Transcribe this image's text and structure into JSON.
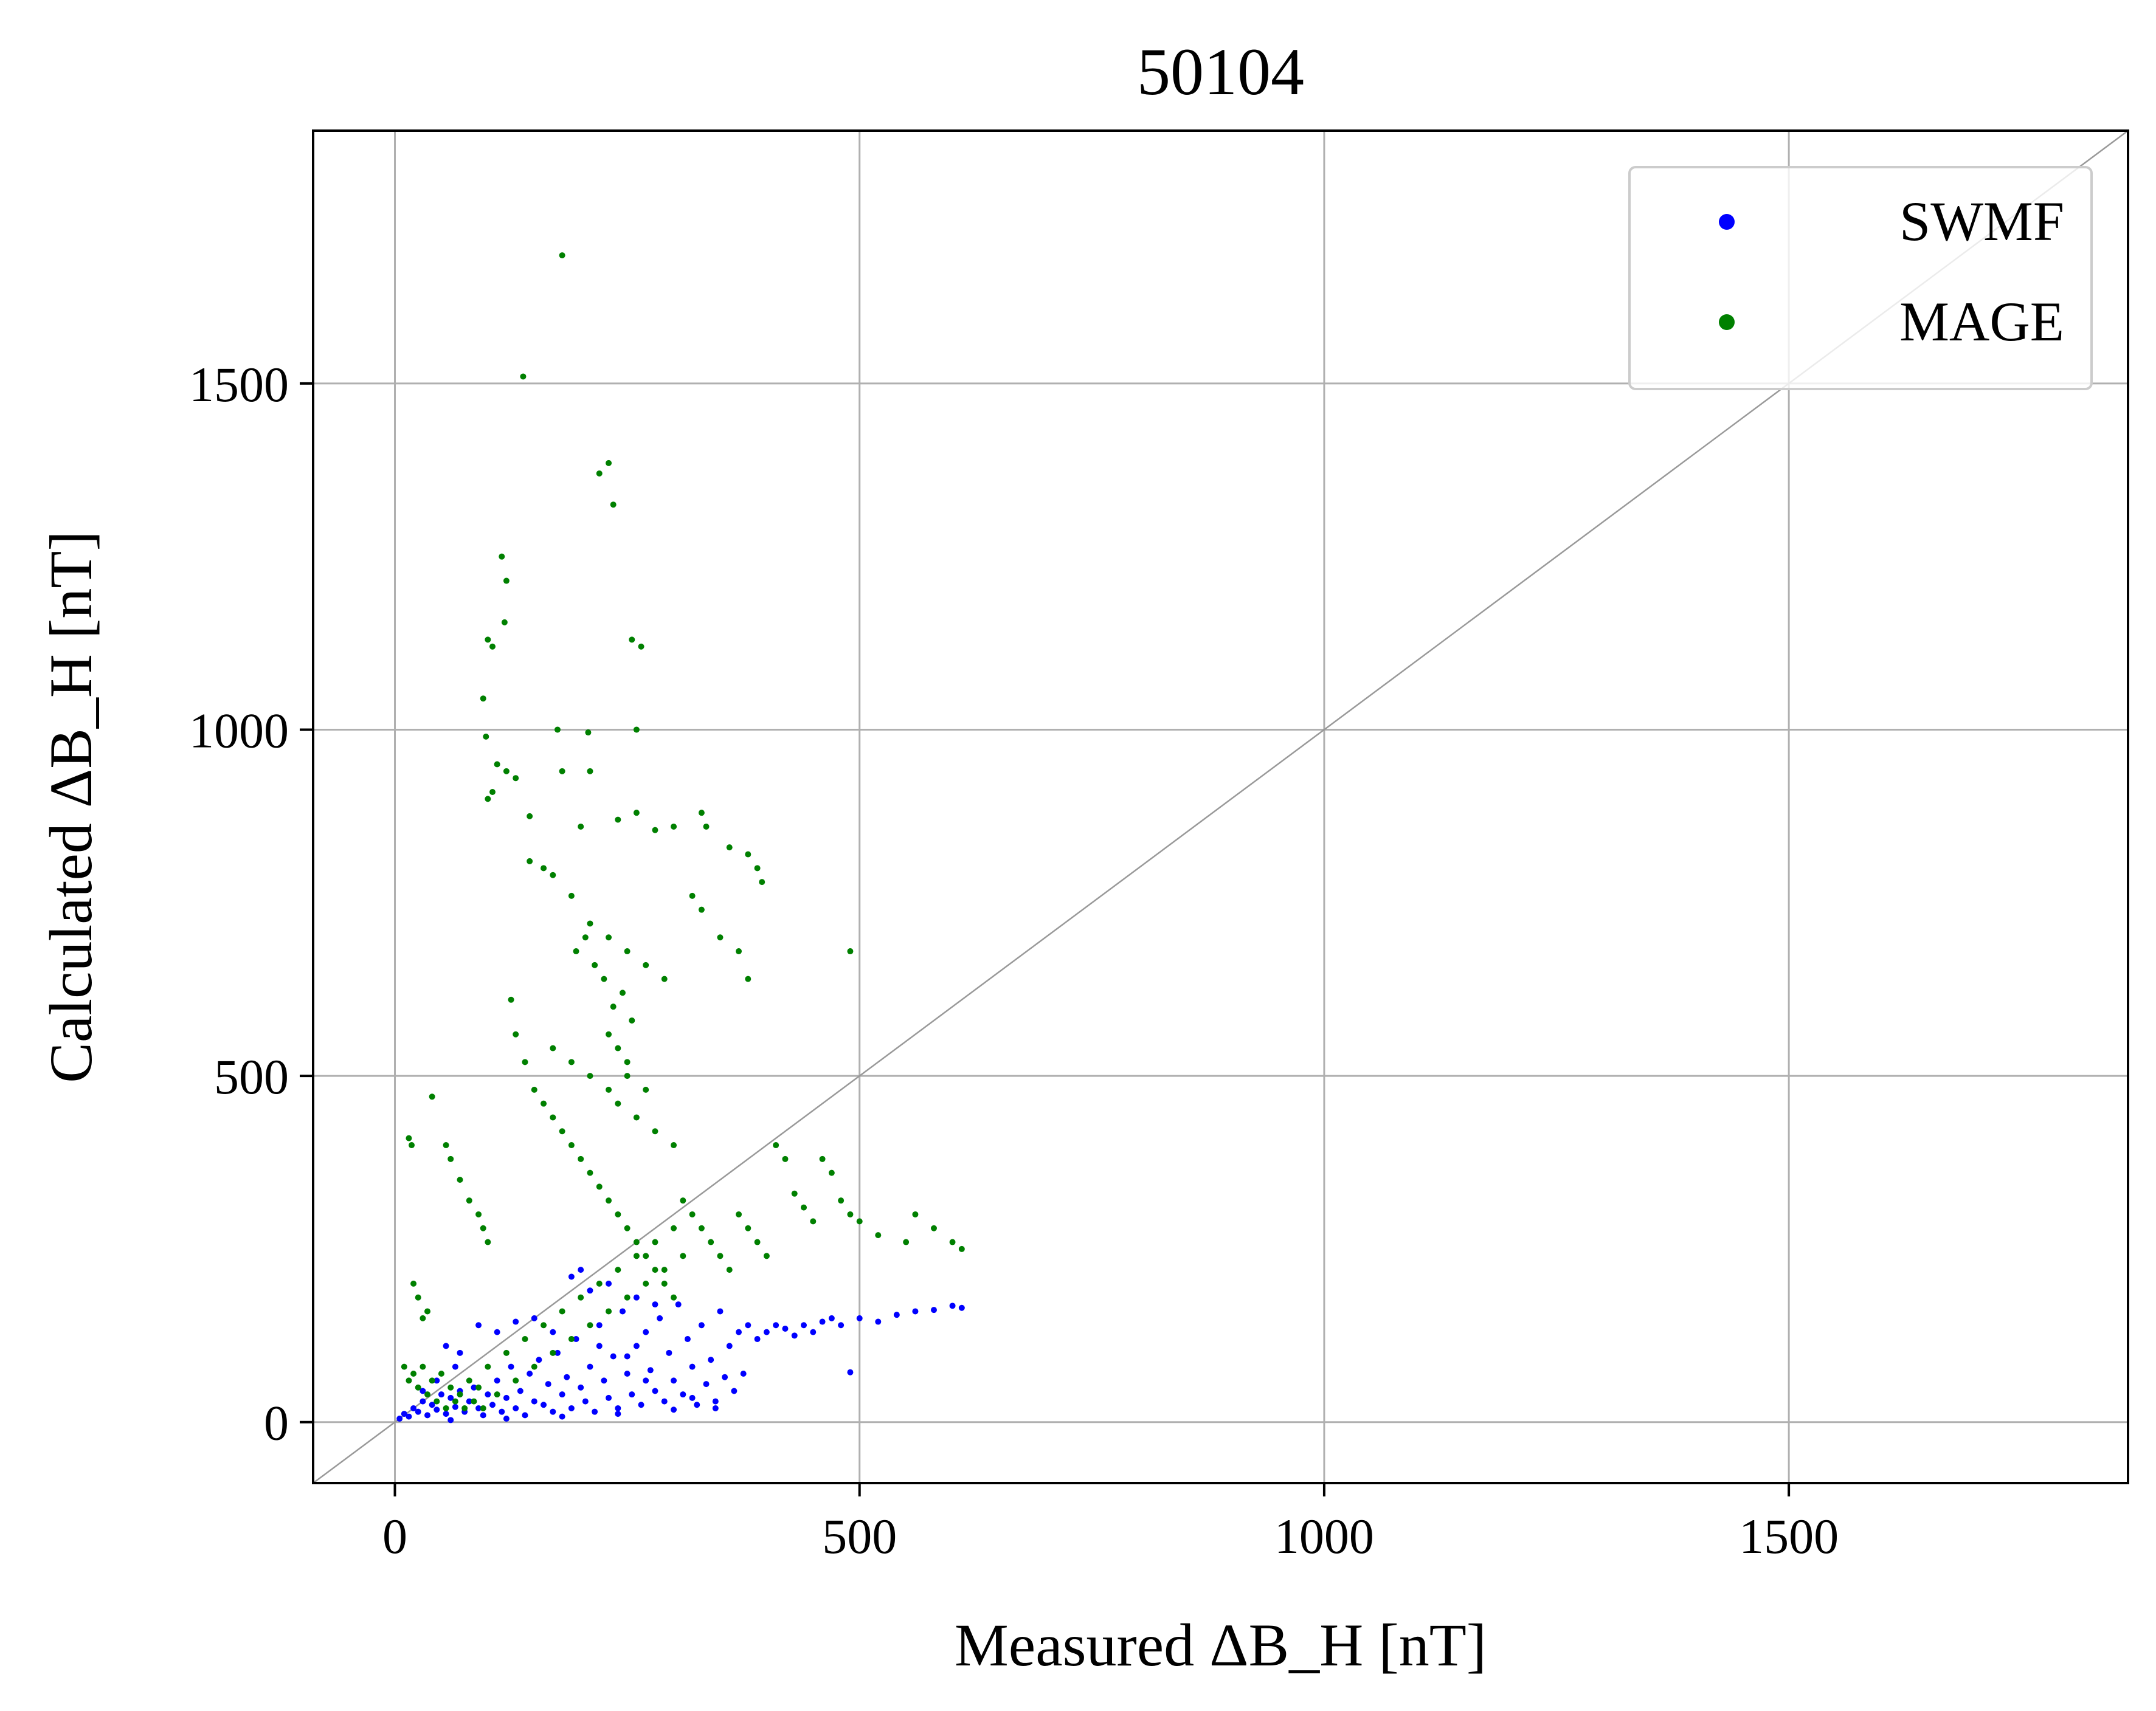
{
  "chart_data": {
    "type": "scatter",
    "title": "50104",
    "xlabel": "Measured ΔB_H [nT]",
    "ylabel": "Calculated ΔB_H [nT]",
    "xlim": [
      -88,
      1865
    ],
    "ylim": [
      -88,
      1865
    ],
    "xticks": [
      "0",
      "500",
      "1000",
      "1500"
    ],
    "yticks": [
      "0",
      "500",
      "1000",
      "1500"
    ],
    "xtick_values": [
      0,
      500,
      1000,
      1500
    ],
    "ytick_values": [
      0,
      500,
      1000,
      1500
    ],
    "grid": true,
    "legend_position": "top-right",
    "reference_line": "y = x",
    "colors": {
      "SWMF": "#0000ff",
      "MAGE": "#008000",
      "grid": "#b0b0b0",
      "diagonal": "#999999"
    },
    "series": [
      {
        "name": "SWMF",
        "points": [
          [
            5,
            5
          ],
          [
            10,
            12
          ],
          [
            15,
            8
          ],
          [
            20,
            20
          ],
          [
            25,
            15
          ],
          [
            30,
            30
          ],
          [
            35,
            10
          ],
          [
            40,
            25
          ],
          [
            45,
            18
          ],
          [
            50,
            40
          ],
          [
            55,
            12
          ],
          [
            60,
            35
          ],
          [
            65,
            22
          ],
          [
            70,
            45
          ],
          [
            75,
            15
          ],
          [
            80,
            30
          ],
          [
            85,
            50
          ],
          [
            90,
            20
          ],
          [
            95,
            10
          ],
          [
            100,
            40
          ],
          [
            105,
            25
          ],
          [
            110,
            60
          ],
          [
            115,
            15
          ],
          [
            120,
            35
          ],
          [
            125,
            80
          ],
          [
            130,
            20
          ],
          [
            135,
            45
          ],
          [
            140,
            10
          ],
          [
            145,
            70
          ],
          [
            150,
            30
          ],
          [
            155,
            90
          ],
          [
            160,
            25
          ],
          [
            165,
            55
          ],
          [
            170,
            15
          ],
          [
            175,
            100
          ],
          [
            180,
            40
          ],
          [
            185,
            65
          ],
          [
            190,
            20
          ],
          [
            195,
            120
          ],
          [
            200,
            50
          ],
          [
            205,
            30
          ],
          [
            210,
            80
          ],
          [
            215,
            15
          ],
          [
            220,
            140
          ],
          [
            225,
            60
          ],
          [
            230,
            35
          ],
          [
            235,
            95
          ],
          [
            240,
            20
          ],
          [
            245,
            160
          ],
          [
            250,
            70
          ],
          [
            255,
            40
          ],
          [
            260,
            110
          ],
          [
            265,
            25
          ],
          [
            270,
            130
          ],
          [
            275,
            75
          ],
          [
            280,
            45
          ],
          [
            285,
            150
          ],
          [
            290,
            30
          ],
          [
            295,
            100
          ],
          [
            300,
            60
          ],
          [
            305,
            170
          ],
          [
            310,
            40
          ],
          [
            315,
            120
          ],
          [
            320,
            80
          ],
          [
            325,
            25
          ],
          [
            330,
            140
          ],
          [
            335,
            55
          ],
          [
            340,
            90
          ],
          [
            345,
            30
          ],
          [
            350,
            160
          ],
          [
            355,
            65
          ],
          [
            360,
            110
          ],
          [
            365,
            45
          ],
          [
            370,
            130
          ],
          [
            375,
            70
          ],
          [
            380,
            140
          ],
          [
            390,
            120
          ],
          [
            400,
            130
          ],
          [
            410,
            140
          ],
          [
            420,
            135
          ],
          [
            430,
            125
          ],
          [
            440,
            140
          ],
          [
            450,
            130
          ],
          [
            460,
            145
          ],
          [
            470,
            150
          ],
          [
            480,
            140
          ],
          [
            490,
            72
          ],
          [
            500,
            150
          ],
          [
            520,
            145
          ],
          [
            540,
            155
          ],
          [
            560,
            160
          ],
          [
            580,
            162
          ],
          [
            600,
            168
          ],
          [
            610,
            165
          ],
          [
            120,
            5
          ],
          [
            180,
            8
          ],
          [
            240,
            12
          ],
          [
            300,
            18
          ],
          [
            60,
            3
          ],
          [
            200,
            220
          ],
          [
            230,
            200
          ],
          [
            260,
            180
          ],
          [
            280,
            170
          ],
          [
            150,
            150
          ],
          [
            170,
            130
          ],
          [
            220,
            110
          ],
          [
            250,
            95
          ],
          [
            270,
            60
          ],
          [
            320,
            35
          ],
          [
            345,
            20
          ],
          [
            30,
            45
          ],
          [
            45,
            60
          ],
          [
            65,
            80
          ],
          [
            70,
            100
          ],
          [
            55,
            110
          ],
          [
            90,
            140
          ],
          [
            110,
            130
          ],
          [
            130,
            145
          ],
          [
            190,
            210
          ],
          [
            210,
            190
          ]
        ]
      },
      {
        "name": "MAGE",
        "points": [
          [
            180,
            1685
          ],
          [
            138,
            1510
          ],
          [
            230,
            1385
          ],
          [
            220,
            1370
          ],
          [
            235,
            1325
          ],
          [
            115,
            1250
          ],
          [
            120,
            1215
          ],
          [
            118,
            1155
          ],
          [
            100,
            1130
          ],
          [
            105,
            1120
          ],
          [
            255,
            1130
          ],
          [
            265,
            1120
          ],
          [
            95,
            1045
          ],
          [
            175,
            1000
          ],
          [
            208,
            996
          ],
          [
            260,
            1000
          ],
          [
            98,
            990
          ],
          [
            110,
            950
          ],
          [
            120,
            940
          ],
          [
            130,
            930
          ],
          [
            180,
            940
          ],
          [
            210,
            940
          ],
          [
            100,
            900
          ],
          [
            105,
            910
          ],
          [
            145,
            875
          ],
          [
            200,
            860
          ],
          [
            240,
            870
          ],
          [
            260,
            880
          ],
          [
            280,
            855
          ],
          [
            300,
            860
          ],
          [
            330,
            880
          ],
          [
            335,
            860
          ],
          [
            360,
            830
          ],
          [
            380,
            820
          ],
          [
            390,
            800
          ],
          [
            395,
            780
          ],
          [
            145,
            810
          ],
          [
            160,
            800
          ],
          [
            170,
            790
          ],
          [
            190,
            760
          ],
          [
            210,
            720
          ],
          [
            230,
            700
          ],
          [
            250,
            680
          ],
          [
            270,
            660
          ],
          [
            290,
            640
          ],
          [
            320,
            760
          ],
          [
            330,
            740
          ],
          [
            350,
            700
          ],
          [
            370,
            680
          ],
          [
            380,
            640
          ],
          [
            490,
            680
          ],
          [
            125,
            610
          ],
          [
            130,
            560
          ],
          [
            140,
            520
          ],
          [
            150,
            480
          ],
          [
            160,
            460
          ],
          [
            170,
            440
          ],
          [
            180,
            420
          ],
          [
            190,
            400
          ],
          [
            200,
            380
          ],
          [
            210,
            360
          ],
          [
            220,
            340
          ],
          [
            230,
            320
          ],
          [
            240,
            300
          ],
          [
            250,
            280
          ],
          [
            260,
            260
          ],
          [
            270,
            240
          ],
          [
            280,
            220
          ],
          [
            290,
            200
          ],
          [
            300,
            180
          ],
          [
            310,
            320
          ],
          [
            320,
            300
          ],
          [
            330,
            280
          ],
          [
            340,
            260
          ],
          [
            350,
            240
          ],
          [
            360,
            220
          ],
          [
            370,
            300
          ],
          [
            380,
            280
          ],
          [
            390,
            260
          ],
          [
            400,
            240
          ],
          [
            410,
            400
          ],
          [
            420,
            380
          ],
          [
            430,
            330
          ],
          [
            440,
            310
          ],
          [
            450,
            290
          ],
          [
            460,
            380
          ],
          [
            470,
            360
          ],
          [
            480,
            320
          ],
          [
            490,
            300
          ],
          [
            500,
            290
          ],
          [
            520,
            270
          ],
          [
            550,
            260
          ],
          [
            560,
            300
          ],
          [
            580,
            280
          ],
          [
            600,
            260
          ],
          [
            610,
            250
          ],
          [
            20,
            200
          ],
          [
            25,
            180
          ],
          [
            30,
            150
          ],
          [
            35,
            160
          ],
          [
            40,
            470
          ],
          [
            15,
            410
          ],
          [
            18,
            400
          ],
          [
            55,
            400
          ],
          [
            60,
            380
          ],
          [
            70,
            350
          ],
          [
            80,
            320
          ],
          [
            90,
            300
          ],
          [
            95,
            280
          ],
          [
            100,
            260
          ],
          [
            10,
            80
          ],
          [
            15,
            60
          ],
          [
            20,
            70
          ],
          [
            25,
            50
          ],
          [
            30,
            80
          ],
          [
            35,
            40
          ],
          [
            40,
            60
          ],
          [
            45,
            30
          ],
          [
            50,
            70
          ],
          [
            55,
            20
          ],
          [
            60,
            50
          ],
          [
            65,
            30
          ],
          [
            70,
            40
          ],
          [
            75,
            20
          ],
          [
            80,
            60
          ],
          [
            85,
            30
          ],
          [
            90,
            50
          ],
          [
            95,
            20
          ],
          [
            100,
            80
          ],
          [
            110,
            40
          ],
          [
            120,
            100
          ],
          [
            130,
            60
          ],
          [
            140,
            120
          ],
          [
            150,
            80
          ],
          [
            160,
            140
          ],
          [
            170,
            100
          ],
          [
            180,
            160
          ],
          [
            190,
            120
          ],
          [
            200,
            180
          ],
          [
            210,
            140
          ],
          [
            220,
            200
          ],
          [
            230,
            160
          ],
          [
            240,
            220
          ],
          [
            250,
            180
          ],
          [
            260,
            240
          ],
          [
            270,
            200
          ],
          [
            280,
            260
          ],
          [
            290,
            220
          ],
          [
            300,
            280
          ],
          [
            310,
            240
          ],
          [
            230,
            560
          ],
          [
            240,
            540
          ],
          [
            250,
            520
          ],
          [
            235,
            600
          ],
          [
            245,
            620
          ],
          [
            255,
            580
          ],
          [
            225,
            640
          ],
          [
            215,
            660
          ],
          [
            205,
            700
          ],
          [
            195,
            680
          ],
          [
            240,
            460
          ],
          [
            260,
            440
          ],
          [
            280,
            420
          ],
          [
            300,
            400
          ],
          [
            250,
            500
          ],
          [
            270,
            480
          ],
          [
            230,
            480
          ],
          [
            210,
            500
          ],
          [
            190,
            520
          ],
          [
            170,
            540
          ]
        ]
      }
    ]
  }
}
